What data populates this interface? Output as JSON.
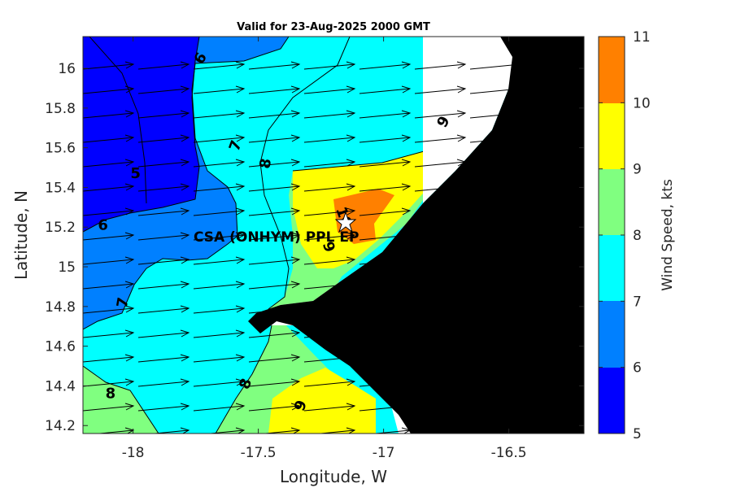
{
  "title": "Valid for 23-Aug-2025 2000 GMT",
  "x_label": "Longitude, W",
  "y_label": "Latitude, N",
  "colorbar_label": "Wind Speed, kts",
  "site_label": "CSA (ONHYM) PPL EP",
  "colors": {
    "5-6": "#0000ff",
    "6-7": "#0080ff",
    "7-8": "#00ffff",
    "8-9": "#80ff80",
    "9-10": "#ffff00",
    "10-11": "#ff8000",
    "land": "#000000"
  },
  "chart_data": {
    "type": "heatmap",
    "subtype": "filled wind-speed contour map with wind vectors",
    "xlim": [
      -18.2,
      -16.2
    ],
    "ylim": [
      14.16,
      16.16
    ],
    "xticks": [
      {
        "value": -18,
        "label": "-18"
      },
      {
        "value": -17.5,
        "label": "-17.5"
      },
      {
        "value": -17,
        "label": "-17"
      },
      {
        "value": -16.5,
        "label": "-16.5"
      }
    ],
    "yticks": [
      {
        "value": 16,
        "label": "16"
      },
      {
        "value": 15.8,
        "label": "15.8"
      },
      {
        "value": 15.6,
        "label": "15.6"
      },
      {
        "value": 15.4,
        "label": "15.4"
      },
      {
        "value": 15.2,
        "label": "15.2"
      },
      {
        "value": 15,
        "label": "15"
      },
      {
        "value": 14.8,
        "label": "14.8"
      },
      {
        "value": 14.6,
        "label": "14.6"
      },
      {
        "value": 14.4,
        "label": "14.4"
      },
      {
        "value": 14.2,
        "label": "14.2"
      }
    ],
    "colorbar_ticks": [
      "5",
      "6",
      "7",
      "8",
      "9",
      "10",
      "11"
    ],
    "levels": [
      5,
      6,
      7,
      8,
      9,
      10,
      11
    ],
    "site_marker": {
      "lon": -17.1,
      "lat": 15.22,
      "symbol": "star"
    },
    "wind_direction": "westerly (arrows pointing east)",
    "contour_labels": [
      {
        "text": "6",
        "lon": -17.73,
        "lat": 16.05,
        "angle": -60
      },
      {
        "text": "7",
        "lon": -17.59,
        "lat": 15.61,
        "angle": -70
      },
      {
        "text": "8",
        "lon": -17.47,
        "lat": 15.52,
        "angle": -80
      },
      {
        "text": "9",
        "lon": -16.76,
        "lat": 15.73,
        "angle": -60
      },
      {
        "text": "5",
        "lon": -17.99,
        "lat": 15.47,
        "angle": 0
      },
      {
        "text": "6",
        "lon": -18.12,
        "lat": 15.21,
        "angle": 0
      },
      {
        "text": "10",
        "lon": -17.16,
        "lat": 15.25,
        "angle": 70
      },
      {
        "text": "9",
        "lon": -17.22,
        "lat": 15.1,
        "angle": 70
      },
      {
        "text": "7",
        "lon": -18.04,
        "lat": 14.82,
        "angle": -80
      },
      {
        "text": "8",
        "lon": -18.09,
        "lat": 14.36,
        "angle": 0
      },
      {
        "text": "8",
        "lon": -17.55,
        "lat": 14.41,
        "angle": -70
      },
      {
        "text": "9",
        "lon": -17.33,
        "lat": 14.3,
        "angle": -70
      }
    ]
  }
}
